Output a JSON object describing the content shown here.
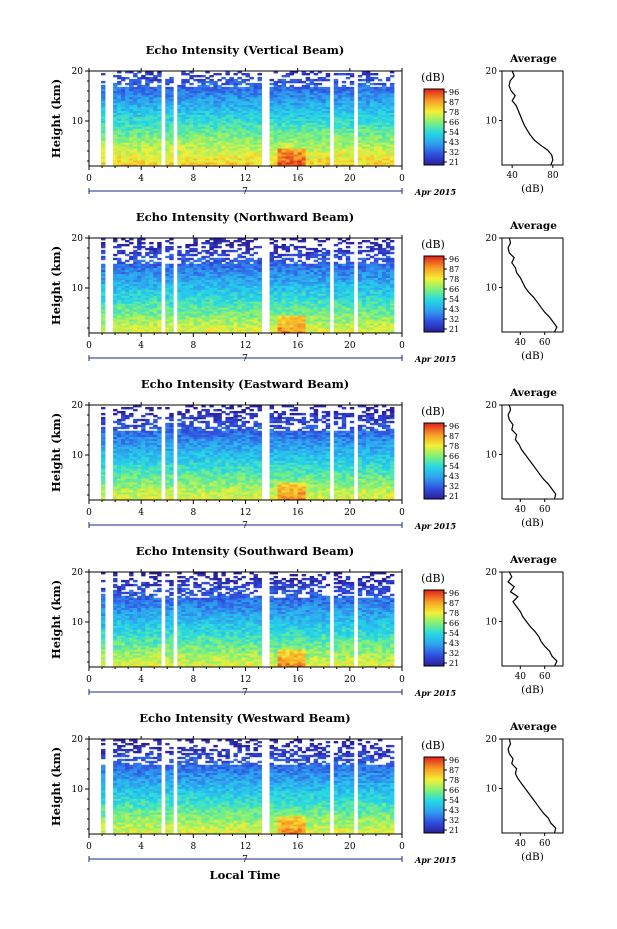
{
  "heatmap": {
    "xlim": [
      0,
      24
    ],
    "ylim": [
      1,
      20
    ],
    "x_ticks": [
      "0",
      "4",
      "8",
      "12",
      "16",
      "20",
      "0"
    ],
    "y_ticks": [
      "10",
      "20"
    ],
    "ylabel": "Height (km)"
  },
  "colorbar": {
    "unit": "(dB)",
    "levels": [
      "96",
      "87",
      "78",
      "66",
      "54",
      "43",
      "32",
      "21"
    ]
  },
  "date_axis": {
    "day_label": "7",
    "date_label": "Apr 2015"
  },
  "xlabel": "Local Time",
  "average_title": "Average",
  "average_xlabel": "(dB)",
  "panels": [
    {
      "title": "Echo Intensity (Vertical Beam)",
      "avg_xticks": [
        "40",
        "80"
      ],
      "avg_xlim": [
        30,
        90
      ],
      "avg_ylim": [
        1,
        20
      ]
    },
    {
      "title": "Echo Intensity (Northward Beam)",
      "avg_xticks": [
        "40",
        "60"
      ],
      "avg_xlim": [
        25,
        75
      ],
      "avg_ylim": [
        1,
        20
      ]
    },
    {
      "title": "Echo Intensity (Eastward Beam)",
      "avg_xticks": [
        "40",
        "60"
      ],
      "avg_xlim": [
        25,
        75
      ],
      "avg_ylim": [
        1,
        20
      ]
    },
    {
      "title": "Echo Intensity (Southward Beam)",
      "avg_xticks": [
        "40",
        "60"
      ],
      "avg_xlim": [
        25,
        75
      ],
      "avg_ylim": [
        1,
        20
      ]
    },
    {
      "title": "Echo Intensity (Westward Beam)",
      "avg_xticks": [
        "40",
        "60"
      ],
      "avg_xlim": [
        25,
        75
      ],
      "avg_ylim": [
        1,
        20
      ]
    }
  ],
  "chart_data": [
    {
      "type": "heatmap",
      "title": "Echo Intensity (Vertical Beam)",
      "ylabel": "Height (km)",
      "xlim": [
        0,
        24
      ],
      "ylim": [
        1,
        20
      ],
      "colorbar_unit": "(dB)",
      "average_profile": {
        "x": [
          78,
          80,
          79,
          75,
          68,
          62,
          58,
          55,
          52,
          50,
          48,
          46,
          44,
          40,
          43,
          39,
          37,
          38,
          42,
          40
        ],
        "y": [
          1,
          2,
          3,
          4,
          5,
          6,
          7,
          8,
          9,
          10,
          11,
          12,
          13,
          14,
          15,
          16,
          17,
          18,
          19,
          20
        ]
      }
    },
    {
      "type": "heatmap",
      "title": "Echo Intensity (Northward Beam)",
      "ylabel": "Height (km)",
      "xlim": [
        0,
        24
      ],
      "ylim": [
        1,
        20
      ],
      "colorbar_unit": "(dB)",
      "average_profile": {
        "x": [
          68,
          70,
          67,
          64,
          60,
          57,
          54,
          51,
          47,
          44,
          42,
          40,
          37,
          36,
          33,
          35,
          31,
          30,
          32,
          31
        ],
        "y": [
          1,
          2,
          3,
          4,
          5,
          6,
          7,
          8,
          9,
          10,
          11,
          12,
          13,
          14,
          15,
          16,
          17,
          18,
          19,
          20
        ]
      }
    },
    {
      "type": "heatmap",
      "title": "Echo Intensity (Eastward Beam)",
      "ylabel": "Height (km)",
      "xlim": [
        0,
        24
      ],
      "ylim": [
        1,
        20
      ],
      "colorbar_unit": "(dB)",
      "average_profile": {
        "x": [
          68,
          69,
          66,
          63,
          59,
          56,
          53,
          50,
          47,
          44,
          41,
          39,
          36,
          37,
          33,
          34,
          31,
          30,
          32,
          31
        ],
        "y": [
          1,
          2,
          3,
          4,
          5,
          6,
          7,
          8,
          9,
          10,
          11,
          12,
          13,
          14,
          15,
          16,
          17,
          18,
          19,
          20
        ]
      }
    },
    {
      "type": "heatmap",
      "title": "Echo Intensity (Southward Beam)",
      "ylabel": "Height (km)",
      "xlim": [
        0,
        24
      ],
      "ylim": [
        1,
        20
      ],
      "colorbar_unit": "(dB)",
      "average_profile": {
        "x": [
          68,
          70,
          66,
          64,
          60,
          57,
          55,
          52,
          48,
          45,
          42,
          40,
          37,
          34,
          38,
          32,
          35,
          30,
          33,
          31
        ],
        "y": [
          1,
          2,
          3,
          4,
          5,
          6,
          7,
          8,
          9,
          10,
          11,
          12,
          13,
          14,
          15,
          16,
          17,
          18,
          19,
          20
        ]
      }
    },
    {
      "type": "heatmap",
      "title": "Echo Intensity (Westward Beam)",
      "ylabel": "Height (km)",
      "xlim": [
        0,
        24
      ],
      "ylim": [
        1,
        20
      ],
      "colorbar_unit": "(dB)",
      "average_profile": {
        "x": [
          68,
          69,
          65,
          63,
          59,
          56,
          53,
          50,
          47,
          44,
          41,
          38,
          36,
          37,
          33,
          34,
          31,
          30,
          32,
          31
        ],
        "y": [
          1,
          2,
          3,
          4,
          5,
          6,
          7,
          8,
          9,
          10,
          11,
          12,
          13,
          14,
          15,
          16,
          17,
          18,
          19,
          20
        ]
      }
    }
  ]
}
